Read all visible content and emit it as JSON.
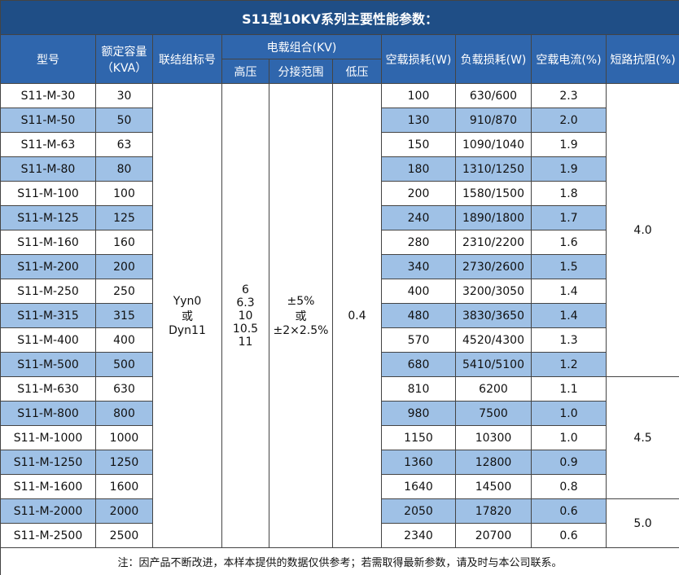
{
  "title": "S11型10KV系列主要性能参数：",
  "header": {
    "model": "型号",
    "capacity": [
      "额定容量",
      "（KVA）"
    ],
    "connection": "联结组标号",
    "voltage_group": "电载组合(KV)",
    "high": "高压",
    "tap": "分接范围",
    "low": "低压",
    "no_load_loss": "空载损耗(W)",
    "load_loss": "负载损耗(W)",
    "no_load_current": "空载电流(%)",
    "impedance": "短路抗阻(%)"
  },
  "table": {
    "rows": [
      [
        "S11-M-30",
        "30",
        "100",
        "630/600",
        "2.3"
      ],
      [
        "S11-M-50",
        "50",
        "130",
        "910/870",
        "2.0"
      ],
      [
        "S11-M-63",
        "63",
        "150",
        "1090/1040",
        "1.9"
      ],
      [
        "S11-M-80",
        "80",
        "180",
        "1310/1250",
        "1.9"
      ],
      [
        "S11-M-100",
        "100",
        "200",
        "1580/1500",
        "1.8"
      ],
      [
        "S11-M-125",
        "125",
        "240",
        "1890/1800",
        "1.7"
      ],
      [
        "S11-M-160",
        "160",
        "280",
        "2310/2200",
        "1.6"
      ],
      [
        "S11-M-200",
        "200",
        "340",
        "2730/2600",
        "1.5"
      ],
      [
        "S11-M-250",
        "250",
        "400",
        "3200/3050",
        "1.4"
      ],
      [
        "S11-M-315",
        "315",
        "480",
        "3830/3650",
        "1.4"
      ],
      [
        "S11-M-400",
        "400",
        "570",
        "4520/4300",
        "1.3"
      ],
      [
        "S11-M-500",
        "500",
        "680",
        "5410/5100",
        "1.2"
      ],
      [
        "S11-M-630",
        "630",
        "810",
        "6200",
        "1.1"
      ],
      [
        "S11-M-800",
        "800",
        "980",
        "7500",
        "1.0"
      ],
      [
        "S11-M-1000",
        "1000",
        "1150",
        "10300",
        "1.0"
      ],
      [
        "S11-M-1250",
        "1250",
        "1360",
        "12800",
        "0.9"
      ],
      [
        "S11-M-1600",
        "1600",
        "1640",
        "14500",
        "0.8"
      ],
      [
        "S11-M-2000",
        "2000",
        "2050",
        "17820",
        "0.6"
      ],
      [
        "S11-M-2500",
        "2500",
        "2340",
        "20700",
        "0.6"
      ]
    ],
    "connection": [
      "Yyn0",
      "或",
      "Dyn11"
    ],
    "high_voltage": [
      "6",
      "6.3",
      "10",
      "10.5",
      "11"
    ],
    "tap_range": [
      "±5%",
      "或",
      "±2×2.5%"
    ],
    "low_voltage": "0.4",
    "impedance": [
      "4.0",
      "4.5",
      "5.0"
    ]
  },
  "note": "注：因产品不断改进，本样本提供的数据仅供参考；若需取得最新参数，请及时与本公司联系。"
}
